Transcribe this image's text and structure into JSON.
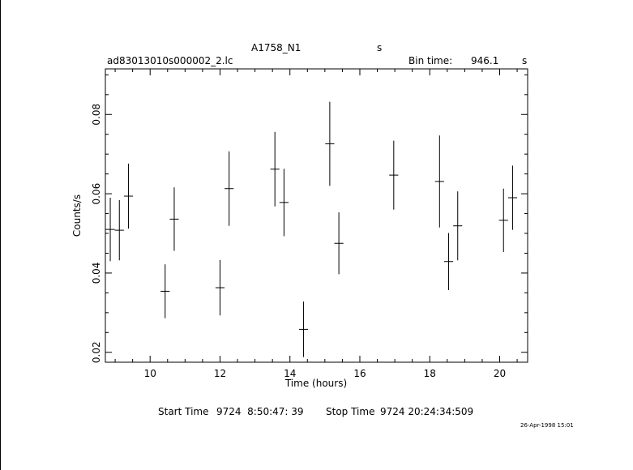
{
  "header": {
    "object": "A1758_N1",
    "object_unit": "s",
    "filename": "ad83013010s000002_2.lc",
    "bin_label": "Bin time:",
    "bin_value": "946.1",
    "bin_unit": "s"
  },
  "footer": {
    "start_label": "Start Time",
    "start_value": "9724  8:50:47: 39",
    "stop_label": "Stop Time",
    "stop_value": "9724 20:24:34:509",
    "timestamp": "26-Apr-1998 15:01"
  },
  "chart_data": {
    "type": "scatter",
    "xlabel": "Time (hours)",
    "ylabel": "Counts/s",
    "xlim": [
      8.72,
      20.8
    ],
    "ylim": [
      0.0175,
      0.0915
    ],
    "xticks": [
      10,
      12,
      14,
      16,
      18,
      20
    ],
    "yticks": [
      0.02,
      0.04,
      0.06,
      0.08
    ],
    "xtick_labels": [
      "10",
      "12",
      "14",
      "16",
      "18",
      "20"
    ],
    "ytick_labels": [
      "0.02",
      "0.04",
      "0.06",
      "0.08"
    ],
    "grid": false,
    "points": [
      {
        "x": 8.86,
        "y": 0.051,
        "xerr": 0.13,
        "yerr": 0.008
      },
      {
        "x": 9.12,
        "y": 0.0508,
        "xerr": 0.13,
        "yerr": 0.0076
      },
      {
        "x": 9.38,
        "y": 0.0594,
        "xerr": 0.13,
        "yerr": 0.0082
      },
      {
        "x": 10.43,
        "y": 0.0354,
        "xerr": 0.13,
        "yerr": 0.0068
      },
      {
        "x": 10.69,
        "y": 0.0536,
        "xerr": 0.13,
        "yerr": 0.008
      },
      {
        "x": 12.0,
        "y": 0.0363,
        "xerr": 0.13,
        "yerr": 0.007
      },
      {
        "x": 12.26,
        "y": 0.0613,
        "xerr": 0.13,
        "yerr": 0.0094
      },
      {
        "x": 13.57,
        "y": 0.0662,
        "xerr": 0.13,
        "yerr": 0.0094
      },
      {
        "x": 13.83,
        "y": 0.0578,
        "xerr": 0.13,
        "yerr": 0.0085
      },
      {
        "x": 14.39,
        "y": 0.0258,
        "xerr": 0.13,
        "yerr": 0.007
      },
      {
        "x": 15.14,
        "y": 0.0726,
        "xerr": 0.13,
        "yerr": 0.0106
      },
      {
        "x": 15.4,
        "y": 0.0475,
        "xerr": 0.13,
        "yerr": 0.0078
      },
      {
        "x": 16.97,
        "y": 0.0647,
        "xerr": 0.13,
        "yerr": 0.0087
      },
      {
        "x": 18.28,
        "y": 0.0631,
        "xerr": 0.13,
        "yerr": 0.0116
      },
      {
        "x": 18.54,
        "y": 0.0429,
        "xerr": 0.13,
        "yerr": 0.0072
      },
      {
        "x": 18.8,
        "y": 0.0519,
        "xerr": 0.13,
        "yerr": 0.0087
      },
      {
        "x": 20.11,
        "y": 0.0533,
        "xerr": 0.13,
        "yerr": 0.008
      },
      {
        "x": 20.37,
        "y": 0.059,
        "xerr": 0.13,
        "yerr": 0.0081
      }
    ]
  }
}
